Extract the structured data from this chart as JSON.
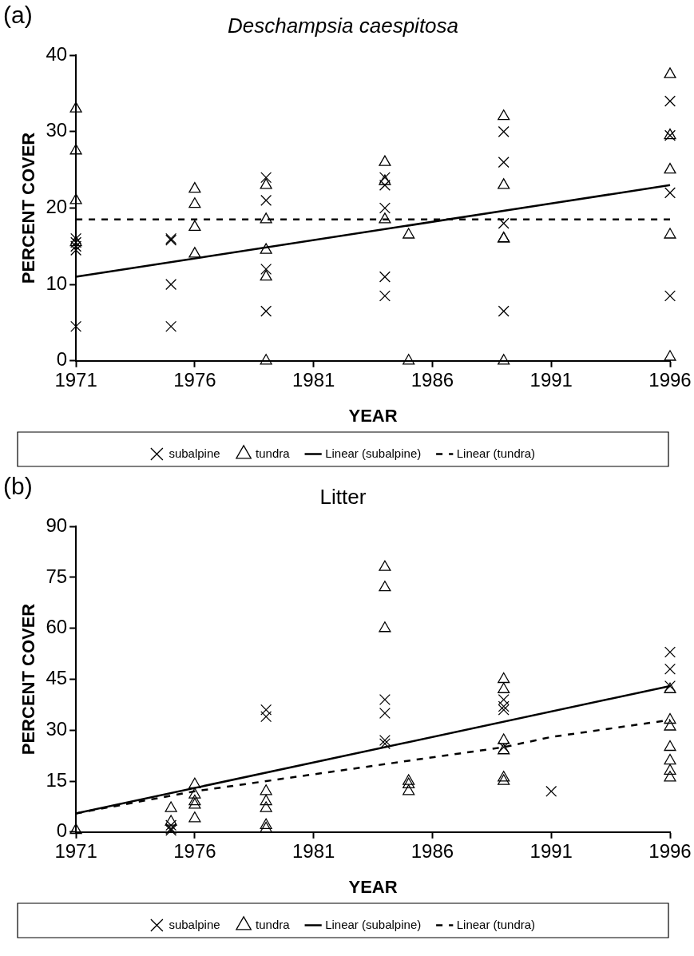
{
  "chart_data": [
    {
      "type": "scatter",
      "title": "Deschampsia caespitosa",
      "xlabel": "YEAR",
      "ylabel": "PERCENT COVER",
      "annotations": [
        "(a)"
      ],
      "xlim": [
        1971,
        1996
      ],
      "xticks": [
        1971,
        1976,
        1981,
        1986,
        1991,
        1996
      ],
      "ylim": [
        0,
        40
      ],
      "yticks": [
        0,
        10,
        20,
        30,
        40
      ],
      "grid": false,
      "legend": "bottom",
      "series": [
        {
          "name": "subalpine",
          "color": "#000000",
          "marker": "cross",
          "x": [
            1971,
            1971,
            1971,
            1971,
            1971,
            1975,
            1975,
            1975,
            1975,
            1979,
            1979,
            1979,
            1979,
            1984,
            1984,
            1984,
            1984,
            1984,
            1989,
            1989,
            1989,
            1989,
            1996,
            1996,
            1996,
            1996
          ],
          "values": [
            16,
            15.5,
            15,
            14.5,
            4.5,
            16,
            15.8,
            10,
            4.5,
            24,
            21,
            12,
            6.5,
            24,
            23,
            20,
            11,
            8.5,
            30,
            26,
            18,
            6.5,
            34,
            29.5,
            22,
            8.5
          ]
        },
        {
          "name": "tundra",
          "color": "#000000",
          "marker": "triangle",
          "x": [
            1971,
            1971,
            1971,
            1971,
            1976,
            1976,
            1976,
            1976,
            1979,
            1979,
            1979,
            1979,
            1979,
            1984,
            1984,
            1984,
            1985,
            1985,
            1989,
            1989,
            1989,
            1989,
            1989,
            1996,
            1996,
            1996,
            1996,
            1996
          ],
          "values": [
            33,
            27.5,
            21,
            15.5,
            22.5,
            20.5,
            17.5,
            14,
            23,
            18.5,
            14.5,
            11,
            0,
            26,
            23.5,
            18.5,
            16.5,
            0,
            32,
            23,
            16,
            16,
            0,
            37.5,
            29.5,
            25,
            16.5,
            0.5
          ]
        },
        {
          "name": "Linear (subalpine)",
          "type": "line",
          "color": "#000000",
          "marker": "none",
          "line_style": "solid",
          "x": [
            1971,
            1996
          ],
          "values": [
            11,
            23
          ]
        },
        {
          "name": "Linear (tundra)",
          "type": "line",
          "color": "#000000",
          "marker": "none",
          "line_style": "dashed",
          "x": [
            1971,
            1996
          ],
          "values": [
            18.5,
            18.5
          ]
        }
      ]
    },
    {
      "type": "scatter",
      "title": "Litter",
      "xlabel": "YEAR",
      "ylabel": "PERCENT COVER",
      "annotations": [
        "(b)"
      ],
      "xlim": [
        1971,
        1996
      ],
      "xticks": [
        1971,
        1976,
        1981,
        1986,
        1991,
        1996
      ],
      "ylim": [
        0,
        90
      ],
      "yticks": [
        0,
        15,
        30,
        45,
        60,
        75,
        90
      ],
      "grid": false,
      "legend": "bottom",
      "series": [
        {
          "name": "subalpine",
          "color": "#000000",
          "marker": "cross",
          "x": [
            1975,
            1975,
            1975,
            1979,
            1979,
            1984,
            1984,
            1984,
            1984,
            1989,
            1989,
            1989,
            1989,
            1991,
            1996,
            1996,
            1996
          ],
          "values": [
            2,
            1,
            0.5,
            36,
            34,
            39,
            35,
            27,
            26,
            39,
            37,
            36,
            25,
            12,
            53,
            48,
            43
          ]
        },
        {
          "name": "tundra",
          "color": "#000000",
          "marker": "triangle",
          "x": [
            1971,
            1975,
            1975,
            1976,
            1976,
            1976,
            1976,
            1976,
            1979,
            1979,
            1979,
            1979,
            1979,
            1984,
            1984,
            1984,
            1985,
            1985,
            1985,
            1989,
            1989,
            1989,
            1989,
            1989,
            1989,
            1996,
            1996,
            1996,
            1996,
            1996,
            1996,
            1996
          ],
          "values": [
            0.5,
            7,
            3,
            14,
            11,
            9,
            8,
            4,
            12,
            9,
            7,
            2,
            1,
            78,
            72,
            60,
            15,
            14,
            12,
            45,
            42,
            27,
            24,
            16,
            15,
            42,
            33,
            31,
            25,
            21,
            18,
            16
          ]
        },
        {
          "name": "Linear (subalpine)",
          "type": "line",
          "color": "#000000",
          "marker": "none",
          "line_style": "solid",
          "x": [
            1971,
            1996
          ],
          "values": [
            5.5,
            43
          ]
        },
        {
          "name": "Linear (tundra)",
          "type": "line",
          "color": "#000000",
          "marker": "none",
          "line_style": "dashed",
          "x": [
            1971,
            1976,
            1981,
            1984,
            1989,
            1991,
            1996
          ],
          "values": [
            5.5,
            12,
            17,
            20,
            25,
            28,
            33
          ]
        }
      ]
    }
  ]
}
